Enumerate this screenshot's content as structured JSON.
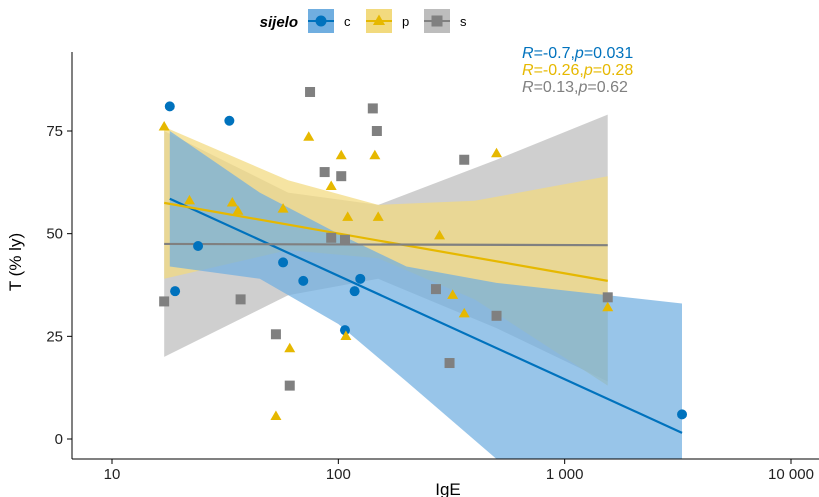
{
  "chart_data": {
    "type": "scatter",
    "xlabel": "IgE",
    "ylabel": "T (% ly)",
    "x_scale": "log10",
    "xlim": [
      10,
      10000
    ],
    "ylim": [
      -3,
      88
    ],
    "x_ticks": [
      10,
      100,
      1000,
      10000
    ],
    "x_tick_labels": [
      "10",
      "100",
      "1 000",
      "10 000"
    ],
    "y_ticks": [
      0,
      25,
      50,
      75
    ],
    "y_tick_labels": [
      "0",
      "25",
      "50",
      "75"
    ],
    "grid": false,
    "legend": {
      "title": "sijelo",
      "placement": "top",
      "entries": [
        "c",
        "p",
        "s"
      ]
    },
    "series": [
      {
        "name": "c",
        "marker": "circle",
        "color": "#0072BD",
        "band_color": "#70AEE0",
        "points": [
          [
            18,
            81
          ],
          [
            19,
            36
          ],
          [
            24,
            47
          ],
          [
            33,
            77.5
          ],
          [
            57,
            43
          ],
          [
            70,
            38.5
          ],
          [
            107,
            26.5
          ],
          [
            118,
            36
          ],
          [
            125,
            39
          ],
          [
            3300,
            6
          ]
        ],
        "fit": {
          "x": [
            18,
            3300
          ],
          "y": [
            58.5,
            1.5
          ]
        },
        "ci_band": [
          {
            "x": 18,
            "lower": 42,
            "upper": 75
          },
          {
            "x": 45,
            "lower": 39,
            "upper": 60
          },
          {
            "x": 100,
            "lower": 28,
            "upper": 50
          },
          {
            "x": 200,
            "lower": 14,
            "upper": 42
          },
          {
            "x": 500,
            "lower": -6,
            "upper": 38
          },
          {
            "x": 3300,
            "lower": -30,
            "upper": 33
          }
        ],
        "annotation": {
          "R": "-0.7",
          "p": "0.031"
        }
      },
      {
        "name": "p",
        "marker": "triangle",
        "color": "#E6B800",
        "band_color": "#F2DA7E",
        "points": [
          [
            17,
            76
          ],
          [
            22,
            58
          ],
          [
            34,
            57.5
          ],
          [
            36,
            55.5
          ],
          [
            57,
            56
          ],
          [
            61,
            22
          ],
          [
            53,
            5.5
          ],
          [
            74,
            73.5
          ],
          [
            93,
            61.5
          ],
          [
            103,
            69
          ],
          [
            108,
            25
          ],
          [
            110,
            54
          ],
          [
            145,
            69
          ],
          [
            150,
            54
          ],
          [
            280,
            49.5
          ],
          [
            320,
            35
          ],
          [
            360,
            30.5
          ],
          [
            500,
            69.5
          ],
          [
            1550,
            32
          ]
        ],
        "fit": {
          "x": [
            17,
            1550
          ],
          "y": [
            57.5,
            38.5
          ]
        },
        "ci_band": [
          {
            "x": 17,
            "lower": 39,
            "upper": 76
          },
          {
            "x": 60,
            "lower": 46,
            "upper": 63
          },
          {
            "x": 150,
            "lower": 44,
            "upper": 57
          },
          {
            "x": 400,
            "lower": 34,
            "upper": 58
          },
          {
            "x": 1550,
            "lower": 13,
            "upper": 64
          }
        ],
        "annotation": {
          "R": "-0.26",
          "p": "0.28"
        }
      },
      {
        "name": "s",
        "marker": "square",
        "color": "#808080",
        "band_color": "#BDBDBD",
        "points": [
          [
            17,
            33.5
          ],
          [
            37,
            34
          ],
          [
            53,
            25.5
          ],
          [
            61,
            13
          ],
          [
            75,
            84.5
          ],
          [
            87,
            65
          ],
          [
            93,
            49
          ],
          [
            103,
            64
          ],
          [
            107,
            48.5
          ],
          [
            142,
            80.5
          ],
          [
            148,
            75
          ],
          [
            270,
            36.5
          ],
          [
            310,
            18.5
          ],
          [
            360,
            68
          ],
          [
            500,
            30
          ],
          [
            1550,
            34.5
          ]
        ],
        "fit": {
          "x": [
            17,
            1550
          ],
          "y": [
            47.5,
            47.2
          ]
        },
        "ci_band": [
          {
            "x": 17,
            "lower": 20,
            "upper": 75
          },
          {
            "x": 60,
            "lower": 35,
            "upper": 60
          },
          {
            "x": 150,
            "lower": 39,
            "upper": 57
          },
          {
            "x": 500,
            "lower": 27,
            "upper": 68
          },
          {
            "x": 1550,
            "lower": 14,
            "upper": 79
          }
        ],
        "annotation": {
          "R": "0.13",
          "p": "0.62"
        }
      }
    ]
  }
}
